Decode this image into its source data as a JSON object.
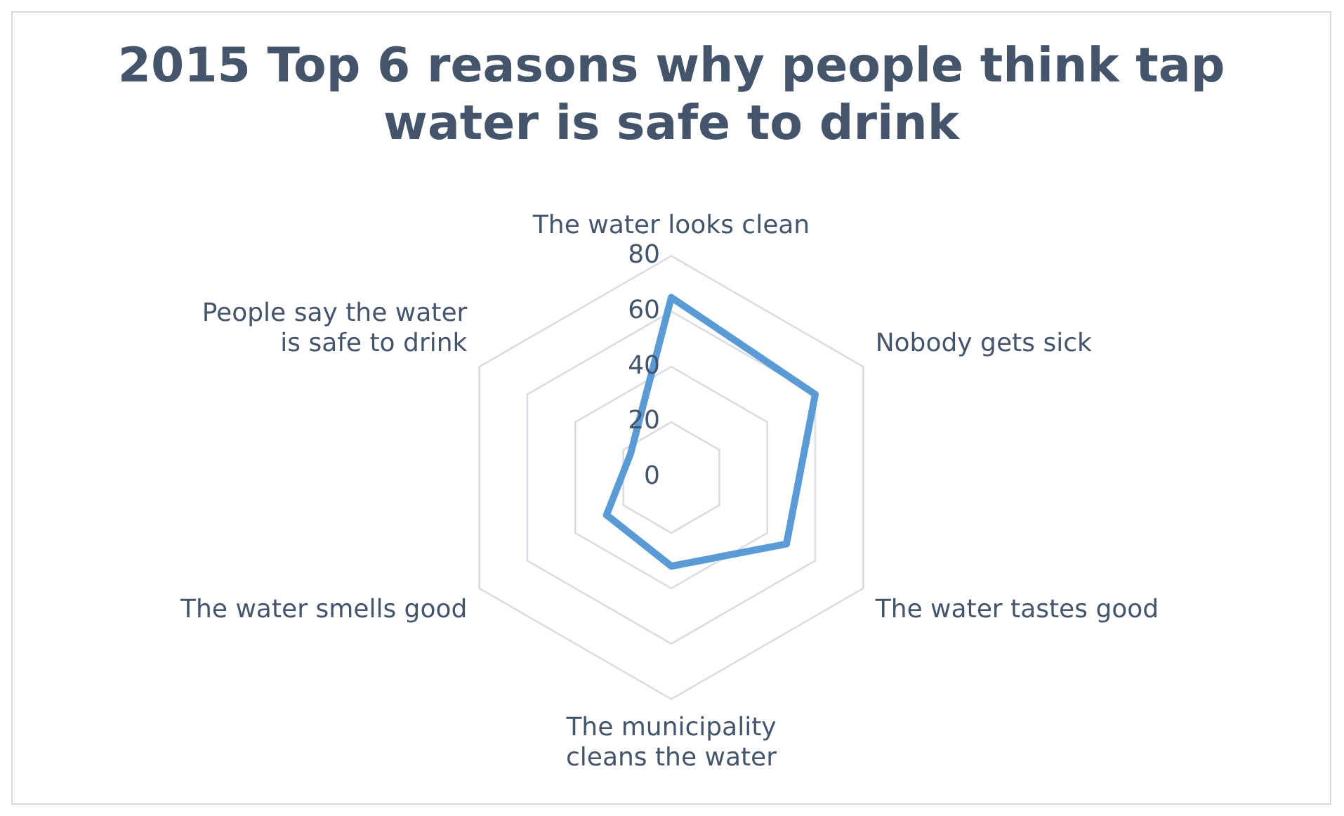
{
  "chart_data": {
    "type": "radar",
    "title": "2015 Top 6 reasons why people think tap water is safe to drink",
    "categories": [
      "The water looks clean",
      "Nobody gets sick",
      "The water tastes good",
      "The municipality cleans the water",
      "The water smells good",
      "People say the water is safe to drink"
    ],
    "series": [
      {
        "color": "#5b9bd5",
        "values": [
          65,
          60,
          48,
          32,
          27,
          17
        ]
      }
    ],
    "ylim": [
      0,
      80
    ],
    "yticks": [
      0,
      20,
      40,
      60,
      80
    ],
    "grid": true,
    "legend": false,
    "marker": "none"
  }
}
